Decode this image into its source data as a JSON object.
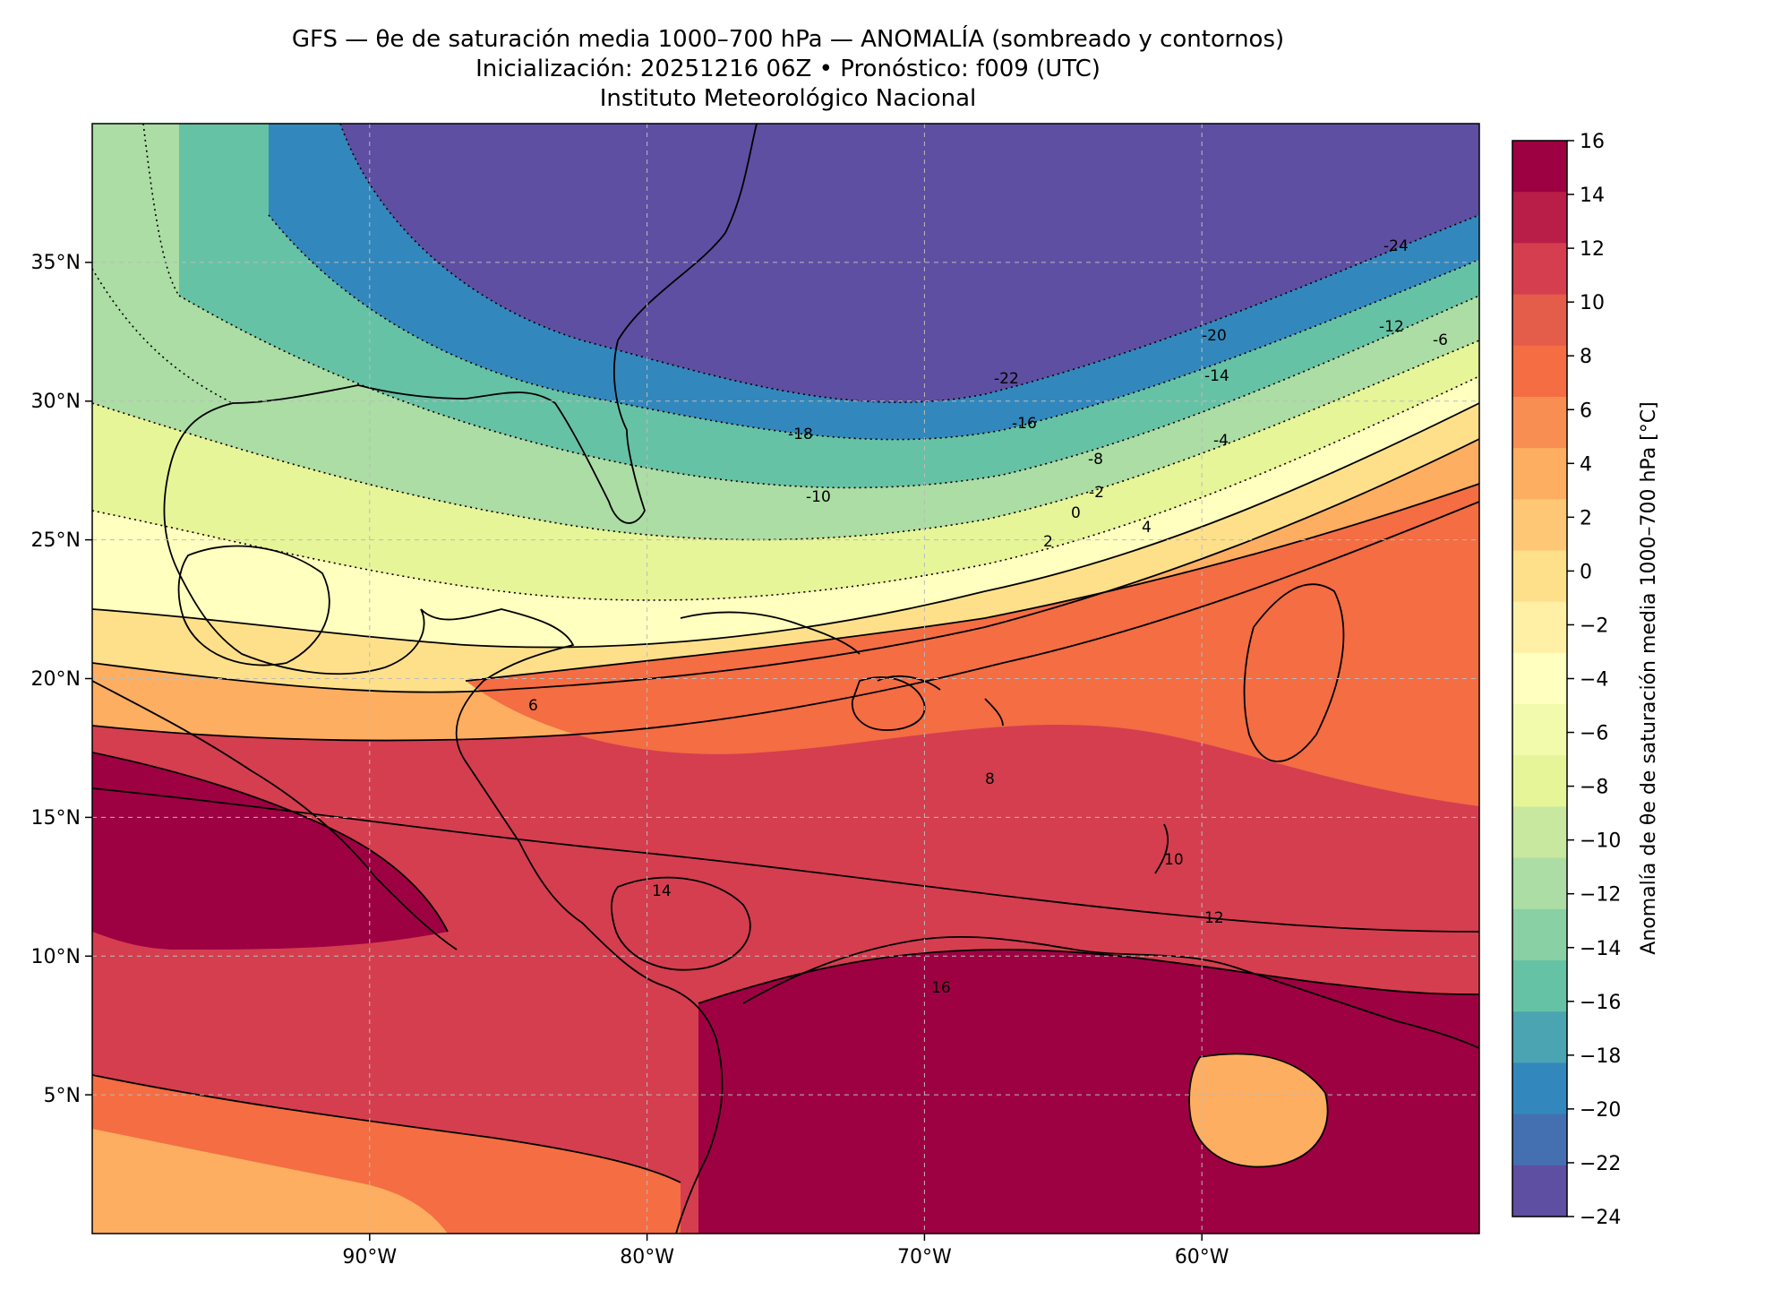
{
  "title": {
    "line1": "GFS — θe de saturación media 1000–700 hPa — ANOMALÍA (sombreado y contornos)",
    "line2": "Inicialización: 20251216 06Z   •   Pronóstico: f009 (UTC)",
    "line3": "Instituto Meteorológico Nacional"
  },
  "map": {
    "lon_range": [
      -100,
      -50
    ],
    "lat_range": [
      0,
      40
    ],
    "lon_ticks": [
      {
        "value": -90,
        "label": "90°W"
      },
      {
        "value": -80,
        "label": "80°W"
      },
      {
        "value": -70,
        "label": "70°W"
      },
      {
        "value": -60,
        "label": "60°W"
      }
    ],
    "lat_ticks": [
      {
        "value": 35,
        "label": "35°N"
      },
      {
        "value": 30,
        "label": "30°N"
      },
      {
        "value": 25,
        "label": "25°N"
      },
      {
        "value": 20,
        "label": "20°N"
      },
      {
        "value": 15,
        "label": "15°N"
      },
      {
        "value": 10,
        "label": "10°N"
      },
      {
        "value": 5,
        "label": "5°N"
      }
    ],
    "gridlines": true,
    "contour_labels": [
      "-24",
      "-22",
      "-20",
      "-18",
      "-16",
      "-14",
      "-12",
      "-10",
      "-8",
      "-6",
      "-4",
      "-2",
      "0",
      "2",
      "4",
      "6",
      "8",
      "10",
      "12",
      "14",
      "16"
    ]
  },
  "colorbar": {
    "label": "Anomalía de θe de saturación media 1000–700 hPa [°C]",
    "ticks": [
      "16",
      "14",
      "12",
      "10",
      "8",
      "6",
      "4",
      "2",
      "0",
      "−2",
      "−4",
      "−6",
      "−8",
      "−10",
      "−12",
      "−14",
      "−16",
      "−18",
      "−20",
      "−22",
      "−24"
    ],
    "colors": [
      "#9e0142",
      "#b91e48",
      "#d53e4f",
      "#e45c4a",
      "#f46d43",
      "#f98e52",
      "#fdae61",
      "#fec776",
      "#fee08b",
      "#fff0a6",
      "#ffffbf",
      "#f2faac",
      "#e6f598",
      "#c7e89e",
      "#abdda4",
      "#89d0a4",
      "#66c2a5",
      "#4ba4b1",
      "#3288bd",
      "#4470b1",
      "#5e4fa2"
    ]
  }
}
